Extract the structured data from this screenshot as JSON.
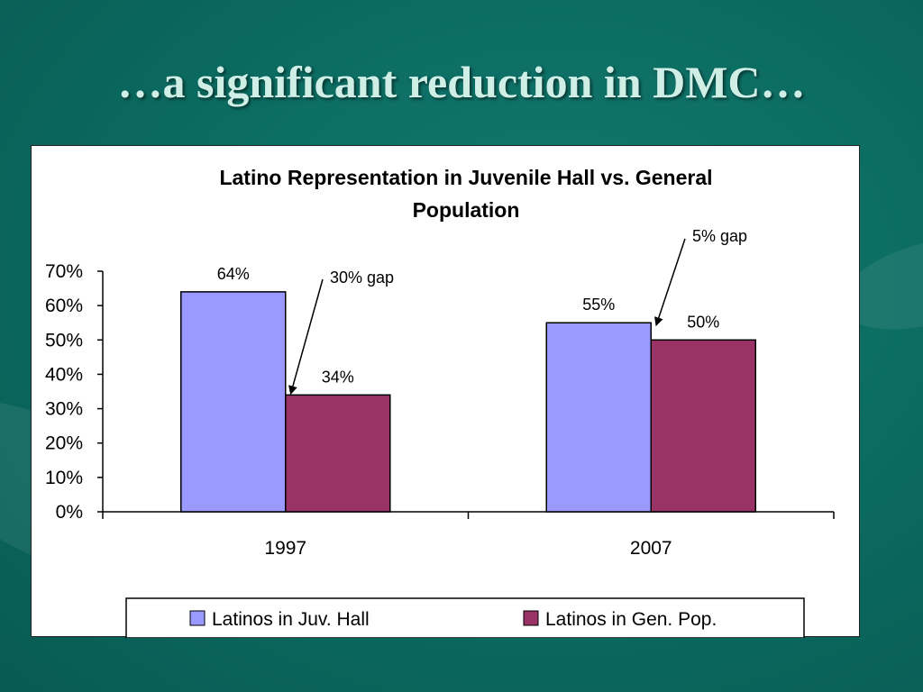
{
  "slide": {
    "title": "…a significant reduction in DMC…"
  },
  "colors": {
    "background": "#0b6d63",
    "title_text": "#cfeee6",
    "series_juv_hall": "#9999ff",
    "series_gen_pop": "#993366"
  },
  "chart_data": {
    "type": "bar",
    "title_lines": [
      "Latino Representation in Juvenile Hall vs. General",
      "Population"
    ],
    "categories": [
      "1997",
      "2007"
    ],
    "series": [
      {
        "name": "Latinos in Juv. Hall",
        "values": [
          64,
          55
        ],
        "labels": [
          "64%",
          "55%"
        ],
        "color": "#9999ff"
      },
      {
        "name": "Latinos in Gen. Pop.",
        "values": [
          34,
          50
        ],
        "labels": [
          "34%",
          "50%"
        ],
        "color": "#993366"
      }
    ],
    "y_ticks": [
      "0%",
      "10%",
      "20%",
      "30%",
      "40%",
      "50%",
      "60%",
      "70%"
    ],
    "ylim": [
      0,
      70
    ],
    "grid": false,
    "legend_position": "bottom",
    "annotations": [
      {
        "text": "30% gap",
        "category": "1997"
      },
      {
        "text": "5% gap",
        "category": "2007"
      }
    ]
  }
}
